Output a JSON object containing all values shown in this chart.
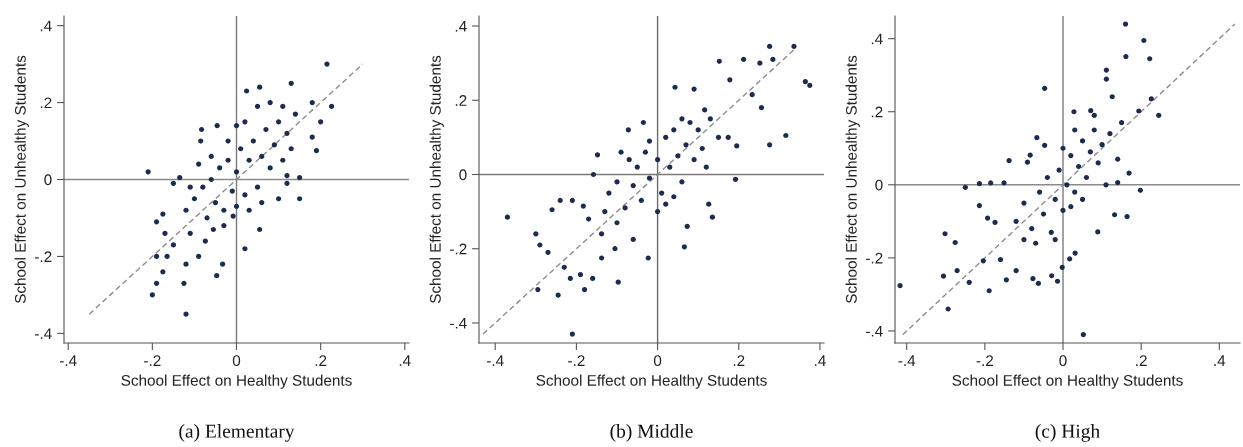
{
  "chart_data": [
    {
      "type": "scatter",
      "title": "(a) Elementary",
      "xlabel": "School Effect on Healthy Students",
      "ylabel": "School Effect on Unhealthy Students",
      "xlim": [
        -0.41,
        0.41
      ],
      "ylim": [
        -0.425,
        0.425
      ],
      "xticks": [
        {
          "value": -0.4,
          "label": "-.4"
        },
        {
          "value": -0.2,
          "label": "-.2"
        },
        0,
        {
          "value": 0.2,
          "label": ".2"
        },
        {
          "value": 0.4,
          "label": ".4"
        }
      ],
      "yticks": [
        {
          "value": -0.4,
          "label": "-.4"
        },
        {
          "value": -0.2,
          "label": "-.2"
        },
        0,
        {
          "value": 0.2,
          "label": ".2"
        },
        {
          "value": 0.4,
          "label": ".4"
        }
      ],
      "ref_lines": [
        {
          "axis": "x",
          "value": 0,
          "color": "#7a7a7a"
        },
        {
          "axis": "y",
          "value": 0,
          "color": "#8a8a8a"
        }
      ],
      "series": [
        {
          "type": "scatter",
          "color": "#1c2b4f",
          "marker": "circle",
          "x": [
            -0.21,
            0.215,
            0.226,
            0.2,
            0.18,
            0.13,
            0.055,
            0.024,
            -0.12,
            -0.2,
            -0.19,
            -0.125,
            -0.19,
            -0.12,
            -0.047,
            -0.033,
            0.02,
            0.055,
            0.15,
            0.15,
            0.12,
            0.19,
            0.18,
            -0.083,
            -0.085,
            -0.046,
            -0.135,
            -0.15,
            -0.19,
            -0.175,
            -0.17,
            -0.165,
            -0.175,
            -0.15,
            -0.11,
            -0.09,
            -0.074,
            -0.055,
            -0.008,
            -0.1,
            -0.08,
            -0.06,
            -0.05,
            -0.04,
            -0.03,
            -0.02,
            -0.01,
            0,
            0.01,
            0.02,
            0.03,
            0.04,
            0.05,
            0.06,
            0.07,
            0.08,
            0.09,
            0.1,
            0.11,
            0.12,
            0.13,
            0.14,
            -0.12,
            -0.11,
            -0.07,
            -0.06,
            -0.02,
            0,
            0.02,
            0.03,
            0.05,
            0.08,
            0.1,
            0.11,
            -0.09,
            -0.03,
            0,
            0.06,
            0.12
          ],
          "values": [
            0.02,
            0.3,
            0.19,
            0.15,
            0.2,
            0.25,
            0.24,
            0.23,
            -0.35,
            -0.3,
            -0.27,
            -0.27,
            -0.2,
            -0.22,
            -0.25,
            -0.22,
            -0.18,
            -0.13,
            -0.05,
            0.005,
            -0.01,
            0.075,
            0.11,
            0.13,
            0.1,
            0.14,
            0.005,
            -0.01,
            -0.11,
            -0.09,
            -0.14,
            -0.2,
            -0.24,
            -0.17,
            -0.14,
            -0.2,
            -0.16,
            -0.13,
            -0.095,
            -0.05,
            -0.02,
            0,
            -0.06,
            0.03,
            -0.08,
            0.05,
            -0.03,
            0.02,
            0.08,
            -0.04,
            0.05,
            0.1,
            -0.02,
            0.06,
            0.13,
            0.03,
            0.09,
            0.15,
            0.05,
            0.12,
            0.08,
            0.17,
            -0.08,
            -0.02,
            -0.1,
            0.06,
            0.1,
            -0.07,
            0.15,
            -0.08,
            0.19,
            0.2,
            -0.05,
            0.19,
            0.04,
            -0.12,
            0.14,
            -0.06,
            0.01
          ]
        },
        {
          "type": "line",
          "color": "#8c8c8c",
          "line_style": "dashed",
          "x": [
            -0.35,
            0.3
          ],
          "values": [
            -0.35,
            0.3
          ]
        }
      ]
    },
    {
      "type": "scatter",
      "title": "(b) Middle",
      "xlabel": "School Effect on Healthy Students",
      "ylabel": "School Effect on Unhealthy Students",
      "xlim": [
        -0.44,
        0.41
      ],
      "ylim": [
        -0.454,
        0.427
      ],
      "xticks": [
        {
          "value": -0.4,
          "label": "-.4"
        },
        {
          "value": -0.2,
          "label": "-.2"
        },
        0,
        {
          "value": 0.2,
          "label": ".2"
        },
        {
          "value": 0.4,
          "label": ".4"
        }
      ],
      "yticks": [
        {
          "value": -0.4,
          "label": "-.4"
        },
        {
          "value": -0.2,
          "label": "-.2"
        },
        0,
        {
          "value": 0.2,
          "label": ".2"
        },
        {
          "value": 0.4,
          "label": ".4"
        }
      ],
      "ref_lines": [
        {
          "axis": "x",
          "value": 0,
          "color": "#6a6a6a"
        },
        {
          "axis": "y",
          "value": 0,
          "color": "#7a7a7a"
        }
      ],
      "series": [
        {
          "type": "scatter",
          "color": "#1c2b4f",
          "marker": "circle",
          "x": [
            -0.37,
            -0.3,
            -0.29,
            -0.295,
            -0.245,
            -0.21,
            -0.27,
            -0.24,
            -0.26,
            -0.21,
            -0.23,
            -0.215,
            -0.19,
            -0.18,
            -0.16,
            -0.097,
            -0.023,
            0.066,
            0.073,
            0.126,
            0.135,
            0.192,
            0.276,
            0.316,
            0.364,
            0.375,
            0.336,
            0.276,
            0.284,
            0.212,
            0.252,
            0.152,
            0.178,
            0.043,
            0.256,
            0.233,
            0.09,
            -0.035,
            -0.072,
            -0.148,
            -0.158,
            -0.183,
            -0.17,
            -0.138,
            -0.105,
            -0.06,
            -0.138,
            0.195,
            0.174,
            0.116,
            -0.12,
            -0.1,
            -0.08,
            -0.06,
            -0.05,
            -0.04,
            -0.03,
            -0.02,
            0,
            0.01,
            0.02,
            0.03,
            0.04,
            0.05,
            0.06,
            0.07,
            0.08,
            0.09,
            0.1,
            0.11,
            0.13,
            0.15,
            -0.1,
            -0.07,
            -0.02,
            0,
            0.04,
            0.12,
            -0.13,
            0.06,
            -0.09,
            0.02
          ],
          "values": [
            -0.115,
            -0.16,
            -0.19,
            -0.31,
            -0.325,
            -0.43,
            -0.21,
            -0.07,
            -0.095,
            -0.07,
            -0.25,
            -0.28,
            -0.27,
            -0.31,
            -0.28,
            -0.29,
            -0.225,
            -0.195,
            -0.14,
            -0.08,
            -0.115,
            -0.013,
            0.08,
            0.105,
            0.25,
            0.24,
            0.345,
            0.345,
            0.31,
            0.31,
            0.3,
            0.305,
            0.255,
            0.235,
            0.18,
            0.215,
            0.23,
            0.14,
            0.12,
            0.053,
            0,
            -0.085,
            -0.12,
            -0.16,
            -0.2,
            -0.175,
            -0.225,
            0.077,
            0.1,
            0.174,
            -0.05,
            -0.02,
            -0.09,
            -0.03,
            0.02,
            -0.07,
            0.06,
            -0.01,
            0.04,
            -0.05,
            0.1,
            0.02,
            0.12,
            0.05,
            -0.02,
            0.08,
            0.14,
            0.04,
            0.12,
            0.07,
            0.15,
            0.1,
            -0.13,
            0.04,
            0.09,
            -0.1,
            -0.06,
            0.02,
            -0.1,
            0.15,
            0.06,
            -0.08
          ]
        },
        {
          "type": "line",
          "color": "#8c8c8c",
          "line_style": "dashed",
          "x": [
            -0.43,
            0.34
          ],
          "values": [
            -0.43,
            0.34
          ]
        }
      ]
    },
    {
      "type": "scatter",
      "title": "(c) High",
      "xlabel": "School Effect on Healthy Students",
      "ylabel": "School Effect on Unhealthy Students",
      "xlim": [
        -0.43,
        0.453
      ],
      "ylim": [
        -0.433,
        0.462
      ],
      "xticks": [
        {
          "value": -0.4,
          "label": "-.4"
        },
        {
          "value": -0.2,
          "label": "-.2"
        },
        0,
        {
          "value": 0.2,
          "label": ".2"
        },
        {
          "value": 0.4,
          "label": ".4"
        }
      ],
      "yticks": [
        {
          "value": -0.4,
          "label": "-.4"
        },
        {
          "value": -0.2,
          "label": "-.2"
        },
        0,
        {
          "value": 0.2,
          "label": ".2"
        },
        {
          "value": 0.4,
          "label": ".4"
        }
      ],
      "ref_lines": [
        {
          "axis": "x",
          "value": 0,
          "color": "#7a7a7a"
        },
        {
          "axis": "y",
          "value": 0,
          "color": "#8a8a8a"
        }
      ],
      "series": [
        {
          "type": "scatter",
          "color": "#1c2b4f",
          "marker": "circle",
          "x": [
            -0.417,
            -0.302,
            -0.276,
            -0.271,
            -0.306,
            -0.294,
            -0.24,
            -0.204,
            -0.189,
            -0.25,
            -0.214,
            -0.185,
            -0.214,
            -0.193,
            -0.174,
            -0.151,
            -0.138,
            -0.16,
            -0.145,
            -0.12,
            -0.077,
            -0.063,
            -0.029,
            -0.014,
            -0.002,
            0.052,
            0.017,
            0.031,
            -0.047,
            0.111,
            0.111,
            0.16,
            0.161,
            0.207,
            0.222,
            0.226,
            0.245,
            0.194,
            0.126,
            0.028,
            0.071,
            0.198,
            0.164,
            0.132,
            0.089,
            0.14,
            0.169,
            -0.047,
            -0.067,
            -0.084,
            -0.091,
            -0.12,
            -0.1,
            -0.08,
            -0.06,
            -0.05,
            -0.04,
            -0.03,
            -0.02,
            -0.01,
            0,
            0.01,
            0.02,
            0.03,
            0.04,
            0.05,
            0.06,
            0.07,
            0.08,
            0.09,
            0.1,
            0.11,
            0.12,
            0.14,
            0.15,
            -0.07,
            -0.02,
            0.02,
            0.05,
            0.08,
            -0.1,
            0,
            0.03
          ],
          "values": [
            -0.276,
            -0.134,
            -0.158,
            -0.235,
            -0.25,
            -0.34,
            -0.267,
            -0.208,
            -0.29,
            -0.007,
            0.003,
            0.005,
            -0.057,
            -0.091,
            -0.103,
            0.005,
            0.066,
            -0.205,
            -0.26,
            -0.235,
            -0.257,
            -0.27,
            -0.249,
            -0.264,
            -0.226,
            -0.41,
            -0.203,
            -0.187,
            0.264,
            0.314,
            0.289,
            0.44,
            0.351,
            0.395,
            0.345,
            0.235,
            0.19,
            0.202,
            0.241,
            0.2,
            0.203,
            -0.015,
            -0.087,
            -0.082,
            -0.129,
            0.006,
            0.032,
            0.108,
            0.129,
            0.081,
            0.062,
            -0.1,
            -0.05,
            -0.12,
            -0.02,
            -0.08,
            0.02,
            -0.13,
            -0.04,
            0.04,
            -0.07,
            0,
            0.08,
            -0.02,
            0.05,
            0.12,
            0.02,
            0.09,
            0.15,
            0.06,
            0.11,
            0,
            0.14,
            0.07,
            0.17,
            -0.16,
            -0.15,
            -0.06,
            -0.04,
            0.19,
            -0.15,
            0.1,
            0.15
          ]
        },
        {
          "type": "line",
          "color": "#8c8c8c",
          "line_style": "dashed",
          "x": [
            -0.41,
            0.44
          ],
          "values": [
            -0.41,
            0.44
          ]
        }
      ]
    }
  ]
}
